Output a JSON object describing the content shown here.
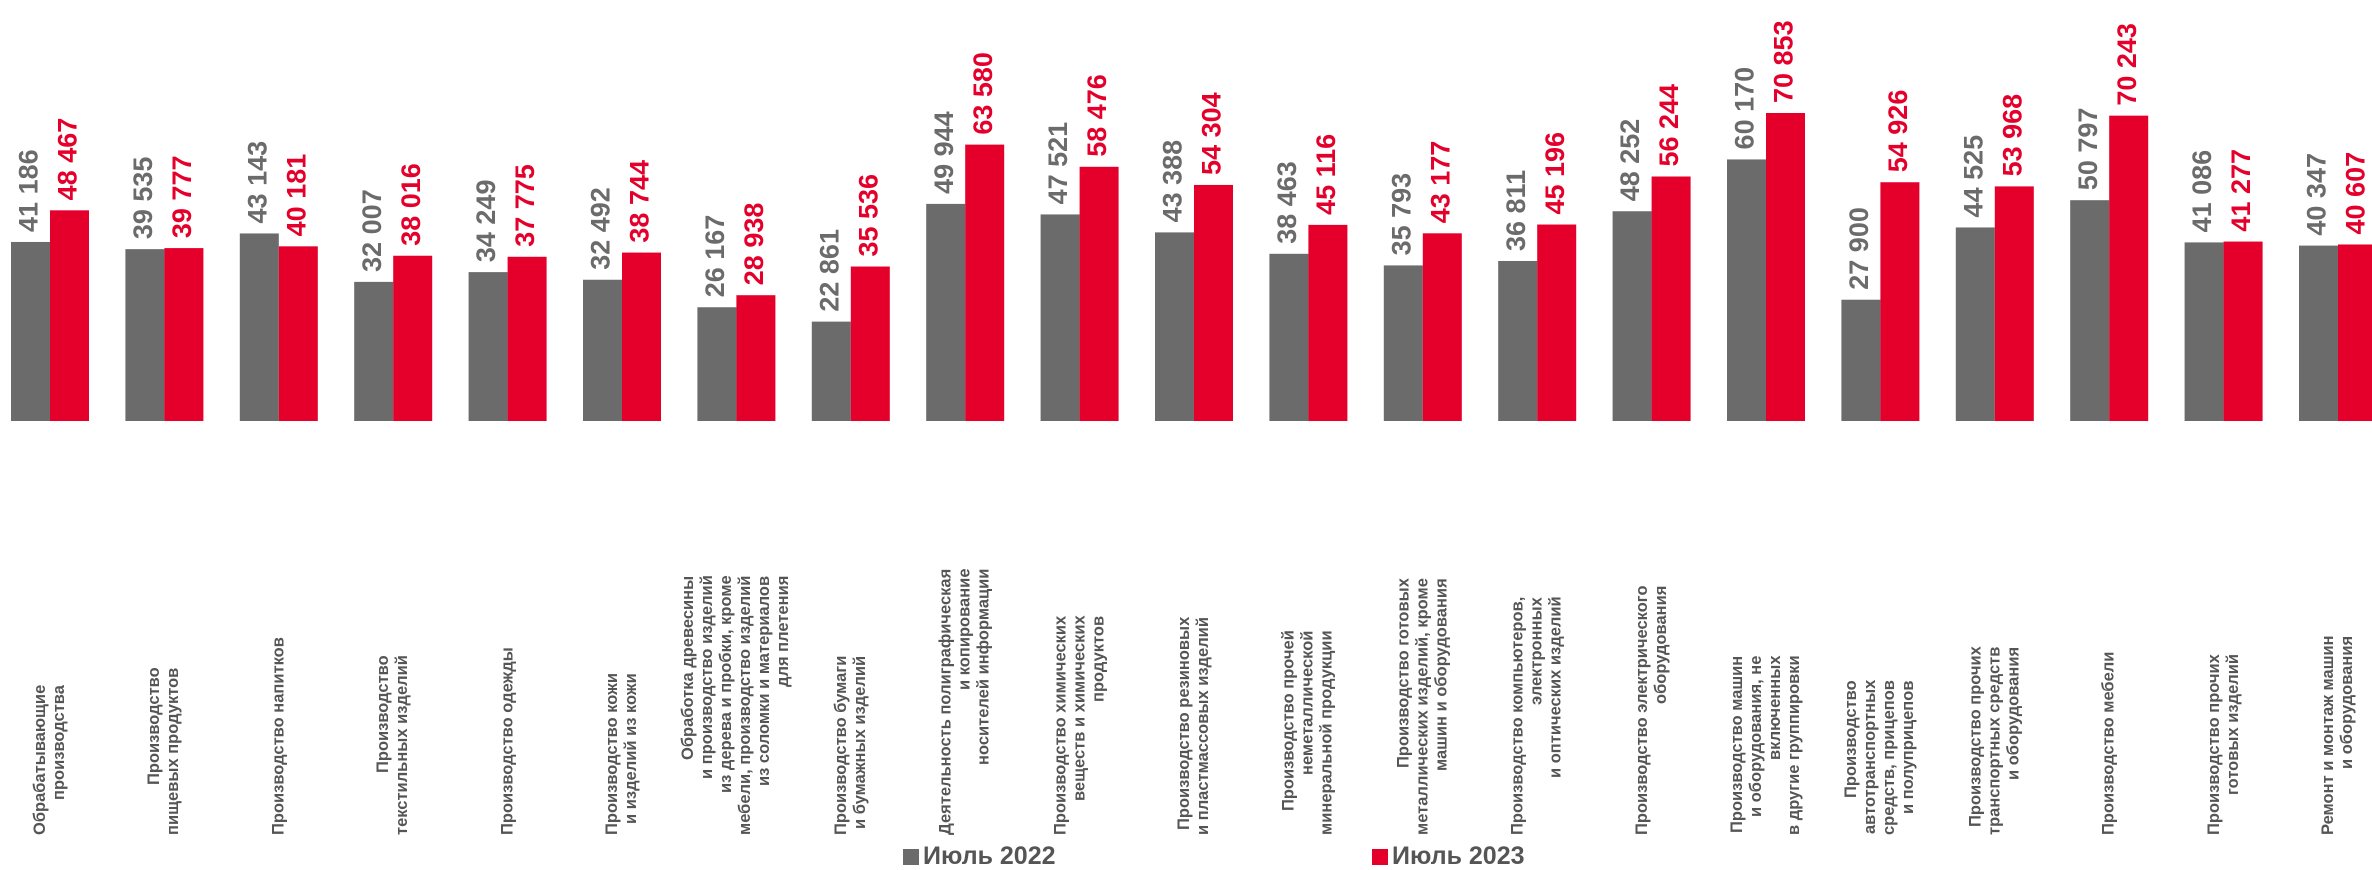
{
  "chart_data": {
    "type": "bar",
    "categories": [
      "Обрабатывающие\nпроизводства",
      "Производство\nпищевых продуктов",
      "Производство напитков",
      "Производство\nтекстильных изделий",
      "Производство одежды",
      "Производство кожи\nи изделий  из кожи",
      "Обработка древесины\nи производство изделий\nиз дерева и пробки, кроме\nмебели, производство изделий\nиз соломки и материалов\nдля плетения",
      "Производство бумаги\nи бумажных изделий",
      "Деятельность полиграфическая\nи копирование\nносителей информации",
      "Производство химических\nвеществ и химических\nпродуктов",
      "Производство резиновых\nи пластмассовых изделий",
      "Производство прочей\nнеметаллической\nминеральной продукции",
      "Производство готовых\nметаллических изделий, кроме\nмашин и оборудования",
      "Производство компьютеров,\nэлектронных\nи оптических изделий",
      "Производство электрического\nоборудования",
      "Производство машин\nи оборудования, не\nвключенных\nв другие группировки",
      "Производство\nавтотранспортных\nсредств, прицепов\nи полуприцепов",
      "Производство прочих\nтранспортных средств\nи оборудования",
      "Производство мебели",
      "Производство прочих\nготовых изделий",
      "Ремонт и монтаж машин\nи оборудования"
    ],
    "series": [
      {
        "name": "Июль 2022",
        "color": "#6b6b6b",
        "values": [
          41186,
          39535,
          43143,
          32007,
          34249,
          32492,
          26167,
          22861,
          49944,
          47521,
          43388,
          38463,
          35793,
          36811,
          48252,
          60170,
          27900,
          44525,
          50797,
          41086,
          40347
        ],
        "value_labels": [
          "41 186",
          "39 535",
          "43 143",
          "32 007",
          "34 249",
          "32 492",
          "26 167",
          "22 861",
          "49 944",
          "47 521",
          "43 388",
          "38 463",
          "35 793",
          "36 811",
          "48 252",
          "60 170",
          "27 900",
          "44 525",
          "50 797",
          "41 086",
          "40 347"
        ]
      },
      {
        "name": "Июль 2023",
        "color": "#e4002b",
        "values": [
          48467,
          39777,
          40181,
          38016,
          37775,
          38744,
          28938,
          35536,
          63580,
          58476,
          54304,
          45116,
          43177,
          45196,
          56244,
          70853,
          54926,
          53968,
          70243,
          41277,
          40607
        ],
        "value_labels": [
          "48 467",
          "39 777",
          "40 181",
          "38 016",
          "37 775",
          "38 744",
          "28 938",
          "35 536",
          "63 580",
          "58 476",
          "54 304",
          "45 116",
          "43 177",
          "45 196",
          "56 244",
          "70 853",
          "54 926",
          "53 968",
          "70 243",
          "41 277",
          "40 607"
        ]
      }
    ]
  }
}
